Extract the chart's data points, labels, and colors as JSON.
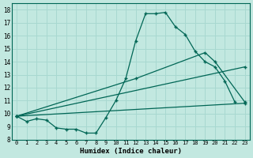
{
  "xlabel": "Humidex (Indice chaleur)",
  "bg_color": "#c2e8e0",
  "grid_color": "#a8d8d0",
  "line_color": "#006655",
  "xlim": [
    0,
    23
  ],
  "ylim": [
    8,
    18.5
  ],
  "yticks": [
    8,
    9,
    10,
    11,
    12,
    13,
    14,
    15,
    16,
    17,
    18
  ],
  "xticks": [
    0,
    1,
    2,
    3,
    4,
    5,
    6,
    7,
    8,
    9,
    10,
    11,
    12,
    13,
    14,
    15,
    16,
    17,
    18,
    19,
    20,
    21,
    22,
    23
  ],
  "line1_x": [
    0,
    1,
    2,
    3,
    4,
    5,
    6,
    7,
    8,
    9,
    10,
    11,
    12,
    13,
    14,
    15,
    16,
    17,
    18,
    19,
    20,
    21,
    22
  ],
  "line1_y": [
    9.8,
    9.4,
    9.6,
    9.5,
    8.9,
    8.8,
    8.8,
    8.5,
    8.5,
    9.7,
    11.0,
    12.7,
    15.6,
    17.7,
    17.7,
    17.8,
    16.7,
    16.1,
    14.8,
    14.0,
    13.6,
    12.5,
    10.9
  ],
  "line2_x": [
    0,
    12,
    19,
    20,
    23
  ],
  "line2_y": [
    9.8,
    12.7,
    14.7,
    14.0,
    10.9
  ],
  "line3_x": [
    0,
    23
  ],
  "line3_y": [
    9.8,
    13.6
  ],
  "line4_x": [
    0,
    23
  ],
  "line4_y": [
    9.8,
    10.8
  ]
}
